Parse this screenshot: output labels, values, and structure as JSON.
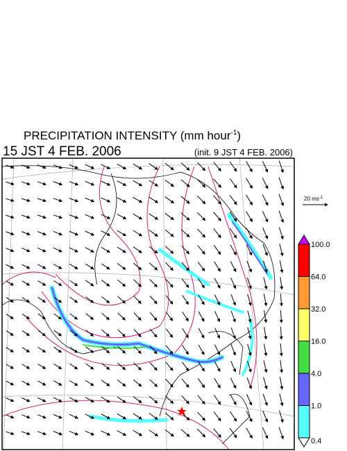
{
  "header": {
    "title": "PRECIPITATION INTENSITY (mm hour",
    "title_sup": "-1",
    "title_end": ")",
    "valid_time": "15 JST 4 FEB. 2006",
    "init_time": "(init. 9 JST 4 FEB. 2006)"
  },
  "wind_scale": {
    "label": "20 ms",
    "label_sup": "-1"
  },
  "colorbar": {
    "labels": [
      "100.0",
      "64.0",
      "32.0",
      "16.0",
      "4.0",
      "1.0",
      "0.4"
    ],
    "over_color": "#cc00ff",
    "colors": [
      "#ff0000",
      "#ff9933",
      "#ffff66",
      "#44dd44",
      "#6666ff",
      "#55ffff"
    ],
    "under_color": "#ffffff"
  }
}
